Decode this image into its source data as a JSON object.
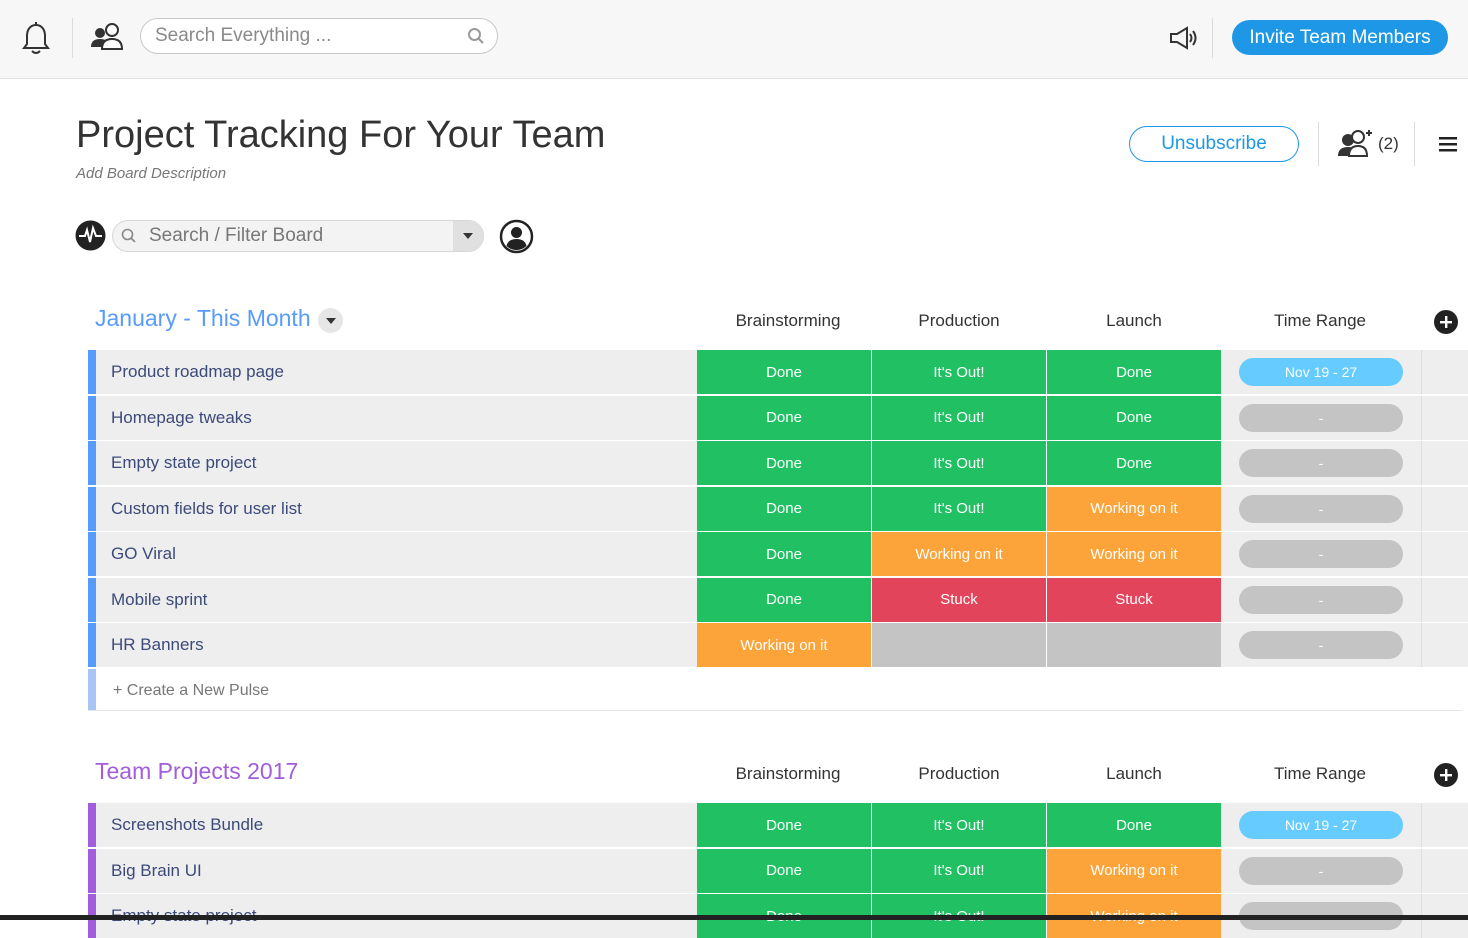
{
  "topbar": {
    "search_placeholder": "Search Everything ...",
    "invite_label": "Invite Team Members"
  },
  "board": {
    "title": "Project Tracking For Your Team",
    "description": "Add Board Description",
    "unsubscribe_label": "Unsubscribe",
    "subscribers_count": "(2)",
    "filter_placeholder": "Search / Filter Board"
  },
  "colors": {
    "accent": "#1e98e6",
    "done": "#20c063",
    "working": "#fca43a",
    "stuck": "#e2445c",
    "empty": "#c4c4c4",
    "group1": "#579bfc",
    "group2": "#a25ddc"
  },
  "columns": [
    "Brainstorming",
    "Production",
    "Launch",
    "Time Range"
  ],
  "groups": [
    {
      "title": "January - This Month",
      "color": "#579bfc",
      "rows": [
        {
          "name": "Product roadmap page",
          "statuses": [
            "Done",
            "It's Out!",
            "Done"
          ],
          "time_range": "Nov 19 - 27"
        },
        {
          "name": "Homepage tweaks",
          "statuses": [
            "Done",
            "It's Out!",
            "Done"
          ],
          "time_range": "-"
        },
        {
          "name": "Empty state project",
          "statuses": [
            "Done",
            "It's Out!",
            "Done"
          ],
          "time_range": "-"
        },
        {
          "name": "Custom fields for user list",
          "statuses": [
            "Done",
            "It's Out!",
            "Working on it"
          ],
          "time_range": "-"
        },
        {
          "name": "GO Viral",
          "statuses": [
            "Done",
            "Working on it",
            "Working on it"
          ],
          "time_range": "-"
        },
        {
          "name": "Mobile sprint",
          "statuses": [
            "Done",
            "Stuck",
            "Stuck"
          ],
          "time_range": "-"
        },
        {
          "name": "HR Banners",
          "statuses": [
            "Working on it",
            "",
            ""
          ],
          "time_range": "-"
        }
      ],
      "new_pulse_label": "+ Create a New Pulse"
    },
    {
      "title": "Team Projects 2017",
      "color": "#a25ddc",
      "rows": [
        {
          "name": "Screenshots Bundle",
          "statuses": [
            "Done",
            "It's Out!",
            "Done"
          ],
          "time_range": "Nov 19 - 27"
        },
        {
          "name": "Big Brain UI",
          "statuses": [
            "Done",
            "It's Out!",
            "Working on it"
          ],
          "time_range": "-"
        },
        {
          "name": "Empty state project",
          "statuses": [
            "Done",
            "It's Out!",
            "Working on it"
          ],
          "time_range": "-"
        }
      ]
    }
  ]
}
